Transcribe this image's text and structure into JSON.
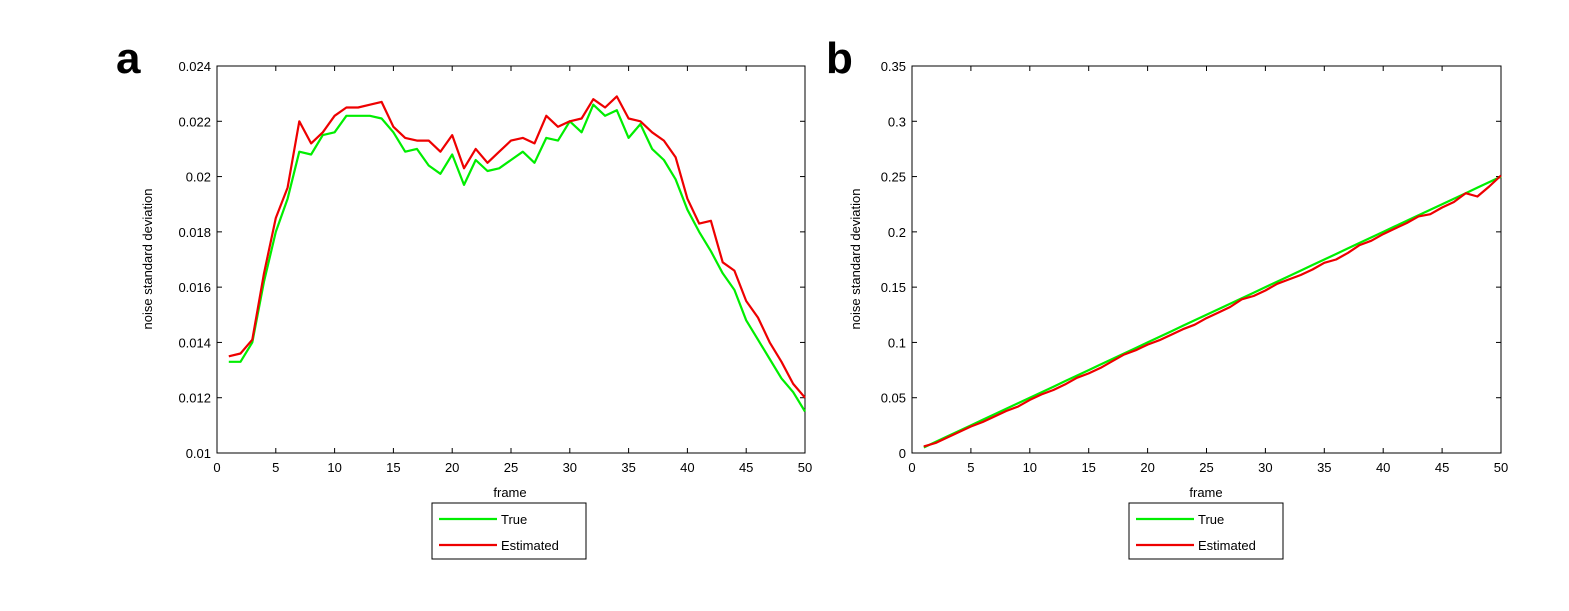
{
  "chart_data": [
    {
      "panel_label": "a",
      "type": "line",
      "xlabel": "frame",
      "ylabel": "noise standard deviation",
      "xlim": [
        0,
        50
      ],
      "ylim": [
        0.01,
        0.024
      ],
      "xticks": [
        "0",
        "5",
        "10",
        "15",
        "20",
        "25",
        "30",
        "35",
        "40",
        "45",
        "50"
      ],
      "yticks": [
        "0.01",
        "0.012",
        "0.014",
        "0.016",
        "0.018",
        "0.02",
        "0.022",
        "0.024"
      ],
      "legend_position": "below",
      "x": [
        1,
        2,
        3,
        4,
        5,
        6,
        7,
        8,
        9,
        10,
        11,
        12,
        13,
        14,
        15,
        16,
        17,
        18,
        19,
        20,
        21,
        22,
        23,
        24,
        25,
        26,
        27,
        28,
        29,
        30,
        31,
        32,
        33,
        34,
        35,
        36,
        37,
        38,
        39,
        40,
        41,
        42,
        43,
        44,
        45,
        46,
        47,
        48,
        49,
        50
      ],
      "series": [
        {
          "name": "True",
          "color": "#00ee00",
          "values": [
            0.0133,
            0.0133,
            0.014,
            0.0162,
            0.018,
            0.0192,
            0.0209,
            0.0208,
            0.0215,
            0.0216,
            0.0222,
            0.0222,
            0.0222,
            0.0221,
            0.0216,
            0.0209,
            0.021,
            0.0204,
            0.0201,
            0.0208,
            0.0197,
            0.0206,
            0.0202,
            0.0203,
            0.0206,
            0.0209,
            0.0205,
            0.0214,
            0.0213,
            0.022,
            0.0216,
            0.0226,
            0.0222,
            0.0224,
            0.0214,
            0.0219,
            0.021,
            0.0206,
            0.0199,
            0.0188,
            0.018,
            0.0173,
            0.0165,
            0.0159,
            0.0148,
            0.0141,
            0.0134,
            0.0127,
            0.0122,
            0.0115
          ]
        },
        {
          "name": "Estimated",
          "color": "#ee0000",
          "values": [
            0.0135,
            0.0136,
            0.0141,
            0.0165,
            0.0185,
            0.0196,
            0.022,
            0.0212,
            0.0216,
            0.0222,
            0.0225,
            0.0225,
            0.0226,
            0.0227,
            0.0218,
            0.0214,
            0.0213,
            0.0213,
            0.0209,
            0.0215,
            0.0203,
            0.021,
            0.0205,
            0.0209,
            0.0213,
            0.0214,
            0.0212,
            0.0222,
            0.0218,
            0.022,
            0.0221,
            0.0228,
            0.0225,
            0.0229,
            0.0221,
            0.022,
            0.0216,
            0.0213,
            0.0207,
            0.0192,
            0.0183,
            0.0184,
            0.0169,
            0.0166,
            0.0155,
            0.0149,
            0.014,
            0.0133,
            0.0125,
            0.012
          ]
        }
      ]
    },
    {
      "panel_label": "b",
      "type": "line",
      "xlabel": "frame",
      "ylabel": "noise standard deviation",
      "xlim": [
        0,
        50
      ],
      "ylim": [
        0,
        0.35
      ],
      "xticks": [
        "0",
        "5",
        "10",
        "15",
        "20",
        "25",
        "30",
        "35",
        "40",
        "45",
        "50"
      ],
      "yticks": [
        "0",
        "0.05",
        "0.1",
        "0.15",
        "0.2",
        "0.25",
        "0.3",
        "0.35"
      ],
      "legend_position": "below",
      "x": [
        1,
        2,
        3,
        4,
        5,
        6,
        7,
        8,
        9,
        10,
        11,
        12,
        13,
        14,
        15,
        16,
        17,
        18,
        19,
        20,
        21,
        22,
        23,
        24,
        25,
        26,
        27,
        28,
        29,
        30,
        31,
        32,
        33,
        34,
        35,
        36,
        37,
        38,
        39,
        40,
        41,
        42,
        43,
        44,
        45,
        46,
        47,
        48,
        49,
        50
      ],
      "series": [
        {
          "name": "True",
          "color": "#00ee00",
          "values": [
            0.005,
            0.01,
            0.015,
            0.02,
            0.025,
            0.03,
            0.035,
            0.04,
            0.045,
            0.05,
            0.055,
            0.06,
            0.065,
            0.07,
            0.075,
            0.08,
            0.085,
            0.09,
            0.095,
            0.1,
            0.105,
            0.11,
            0.115,
            0.12,
            0.125,
            0.13,
            0.135,
            0.14,
            0.145,
            0.15,
            0.155,
            0.16,
            0.165,
            0.17,
            0.175,
            0.18,
            0.185,
            0.19,
            0.195,
            0.2,
            0.205,
            0.21,
            0.215,
            0.22,
            0.225,
            0.23,
            0.235,
            0.24,
            0.245,
            0.25
          ]
        },
        {
          "name": "Estimated",
          "color": "#ee0000",
          "values": [
            0.006,
            0.009,
            0.014,
            0.019,
            0.024,
            0.028,
            0.033,
            0.038,
            0.042,
            0.048,
            0.053,
            0.057,
            0.062,
            0.068,
            0.072,
            0.077,
            0.083,
            0.089,
            0.093,
            0.098,
            0.102,
            0.107,
            0.112,
            0.116,
            0.122,
            0.127,
            0.132,
            0.139,
            0.142,
            0.147,
            0.153,
            0.157,
            0.161,
            0.166,
            0.172,
            0.175,
            0.181,
            0.188,
            0.192,
            0.198,
            0.203,
            0.208,
            0.214,
            0.216,
            0.222,
            0.227,
            0.235,
            0.232,
            0.241,
            0.251
          ]
        }
      ]
    }
  ]
}
